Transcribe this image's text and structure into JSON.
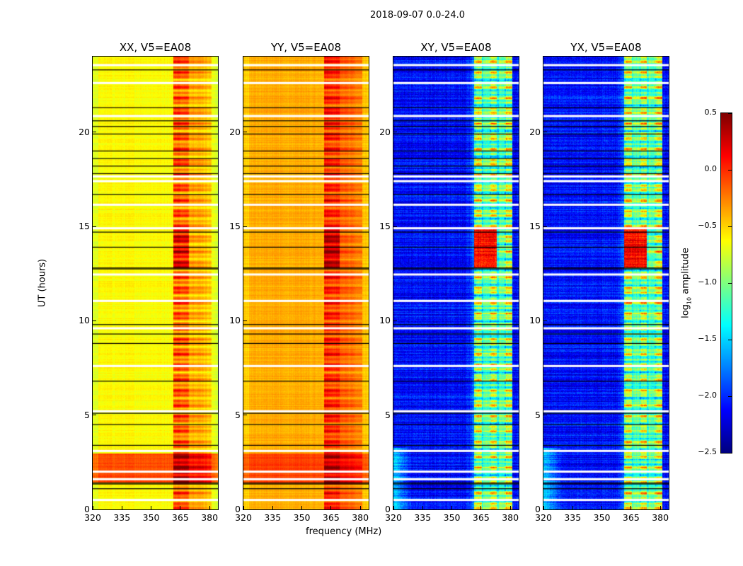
{
  "chart_data": {
    "type": "heatmap",
    "title": "2018-09-07 0.0-24.0",
    "xlabel": "frequency (MHz)",
    "ylabel": "UT (hours)",
    "xlim": [
      320,
      384.3
    ],
    "ylim": [
      0,
      24
    ],
    "xticks": [
      320,
      335,
      350,
      365,
      380
    ],
    "yticks": [
      0,
      5,
      10,
      15,
      20
    ],
    "colorbar": {
      "label_prefix": "log",
      "label_sub": "10",
      "label_suffix": " amplitude",
      "range": [
        -2.5,
        0.5
      ],
      "ticks": [
        "0.5",
        "0.0",
        "−0.5",
        "−1.0",
        "−1.5",
        "−2.0",
        "−2.5"
      ],
      "tick_values": [
        0.5,
        0.0,
        -0.5,
        -1.0,
        -1.5,
        -2.0,
        -2.5
      ],
      "colormap": "jet"
    },
    "panels": [
      {
        "title": "XX, V5=EA08",
        "baseline": -0.62,
        "low_ut_level": -0.1,
        "band_level": 0.15,
        "band_mhz": [
          361.5,
          381
        ]
      },
      {
        "title": "YY, V5=EA08",
        "baseline": -0.38,
        "low_ut_level": -0.05,
        "band_level": 0.25,
        "band_mhz": [
          361.5,
          381
        ]
      },
      {
        "title": "XY, V5=EA08",
        "baseline": -2.1,
        "low_ut_level": -1.8,
        "band_level": -0.6,
        "band_mhz": [
          361.5,
          381
        ]
      },
      {
        "title": "YX, V5=EA08",
        "baseline": -2.1,
        "low_ut_level": -1.8,
        "band_level": -0.6,
        "band_mhz": [
          361.5,
          381
        ]
      }
    ],
    "flagged_white_ut": [
      23.55,
      22.6,
      20.85,
      17.65,
      17.4,
      16.15,
      14.9,
      12.45,
      11.05,
      9.6,
      7.6,
      5.2,
      3.1,
      2.0,
      1.6,
      0.5
    ],
    "black_lines_ut": [
      23.3,
      21.3,
      20.6,
      20.3,
      19.9,
      19.0,
      18.6,
      18.2,
      17.8,
      16.7,
      14.7,
      13.9,
      12.8,
      12.75,
      9.8,
      9.3,
      8.8,
      6.8,
      5.1,
      4.5,
      3.4,
      1.4,
      1.35,
      1.1
    ]
  }
}
